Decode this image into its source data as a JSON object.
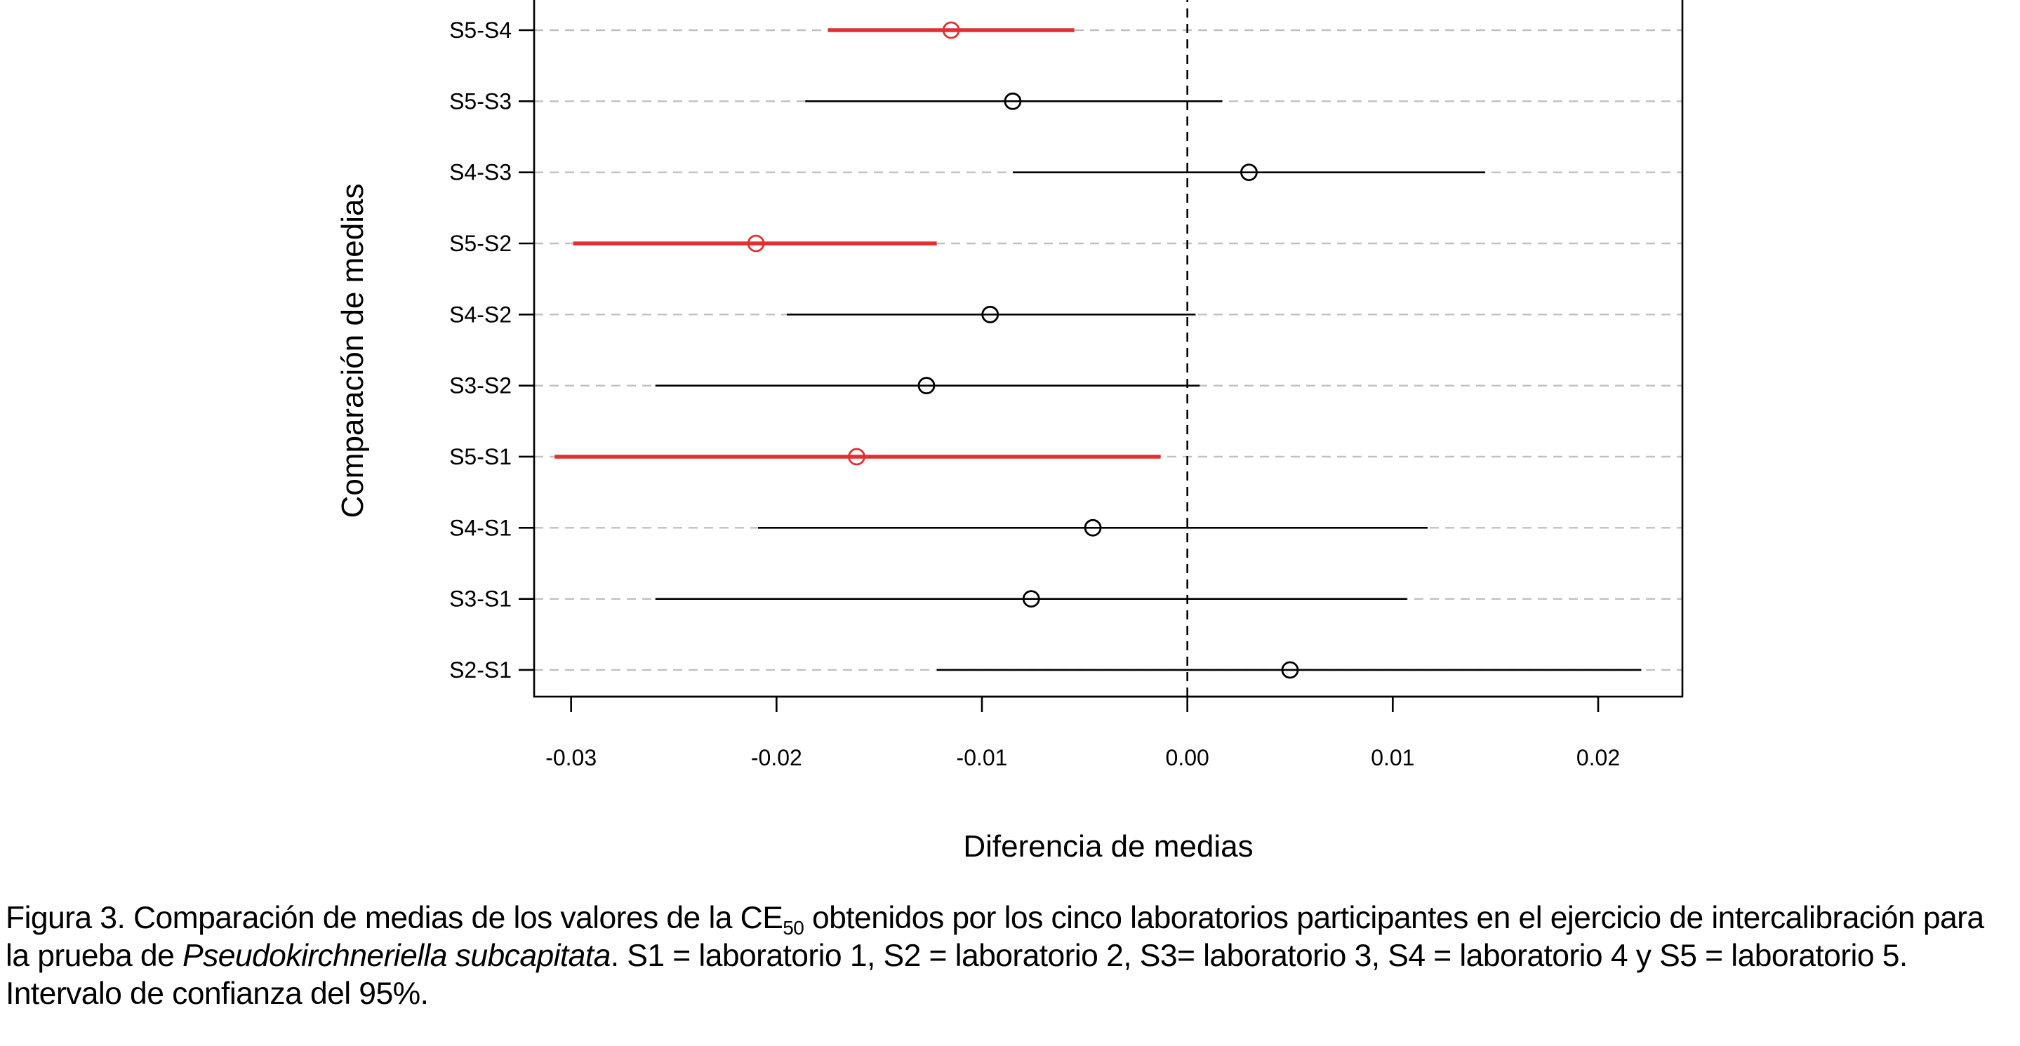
{
  "chart_data": {
    "type": "interval",
    "title": "",
    "xlabel": "Diferencia de medias",
    "ylabel": "Comparación de medias",
    "xlim": [
      -0.0318,
      0.0241
    ],
    "x_ticks": [
      -0.03,
      -0.02,
      -0.01,
      0.0,
      0.01,
      0.02
    ],
    "x_tick_labels": [
      "-0.03",
      "-0.02",
      "-0.01",
      "0.00",
      "0.01",
      "0.02"
    ],
    "reference_line": 0.0,
    "grid": "horizontal dashed",
    "comparisons": [
      {
        "label": "S5-S4",
        "estimate": -0.0115,
        "lower": -0.0175,
        "upper": -0.0055,
        "significant": true
      },
      {
        "label": "S5-S3",
        "estimate": -0.0085,
        "lower": -0.0186,
        "upper": 0.0017,
        "significant": false
      },
      {
        "label": "S4-S3",
        "estimate": 0.003,
        "lower": -0.0085,
        "upper": 0.0145,
        "significant": false
      },
      {
        "label": "S5-S2",
        "estimate": -0.021,
        "lower": -0.0299,
        "upper": -0.0122,
        "significant": true
      },
      {
        "label": "S4-S2",
        "estimate": -0.0096,
        "lower": -0.0195,
        "upper": 0.0004,
        "significant": false
      },
      {
        "label": "S3-S2",
        "estimate": -0.0127,
        "lower": -0.0259,
        "upper": 0.0006,
        "significant": false
      },
      {
        "label": "S5-S1",
        "estimate": -0.0161,
        "lower": -0.0308,
        "upper": -0.0013,
        "significant": true
      },
      {
        "label": "S4-S1",
        "estimate": -0.0046,
        "lower": -0.0209,
        "upper": 0.0117,
        "significant": false
      },
      {
        "label": "S3-S1",
        "estimate": -0.0076,
        "lower": -0.0259,
        "upper": 0.0107,
        "significant": false
      },
      {
        "label": "S2-S1",
        "estimate": 0.005,
        "lower": -0.0122,
        "upper": 0.0221,
        "significant": false
      }
    ],
    "colors": {
      "significant": "#e03030",
      "normal": "#000000",
      "grid": "#c0c0c0"
    }
  },
  "caption": {
    "prefix": "Figura 3. Comparación de medias de los valores de la CE",
    "subscript": "50",
    "middle": " obtenidos por los cinco laboratorios participantes en el ejercicio de intercalibración para la prueba de ",
    "species": "Pseudokirchneriella subcapitata",
    "suffix": ". S1 = laboratorio 1, S2 = laboratorio 2, S3= laboratorio 3, S4 = laboratorio 4 y S5 = laboratorio 5. Intervalo de confianza del 95%."
  }
}
